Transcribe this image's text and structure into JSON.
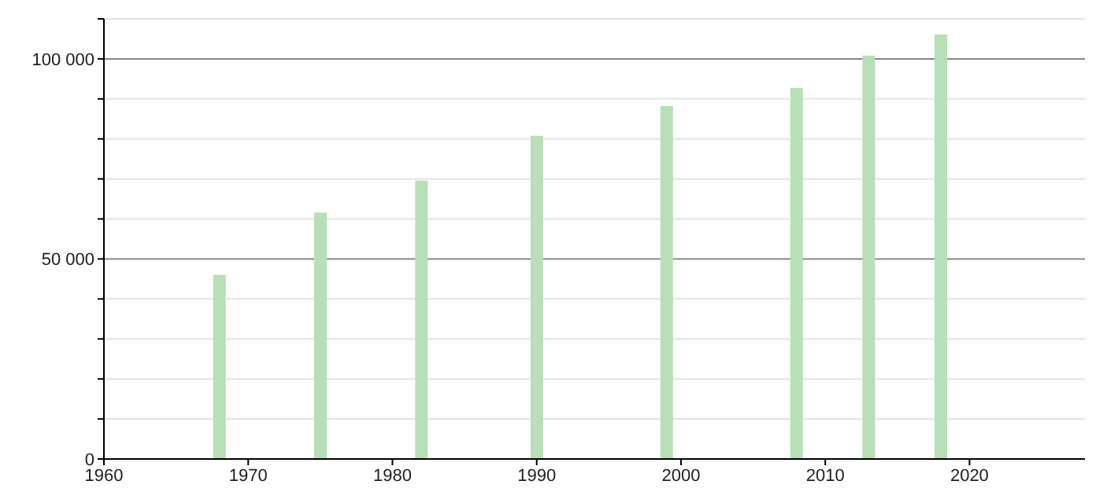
{
  "chart_data": {
    "type": "bar",
    "x": [
      1968,
      1975,
      1982,
      1990,
      1999,
      2008,
      2013,
      2018
    ],
    "values": [
      46000,
      61600,
      69600,
      80800,
      88200,
      92700,
      100800,
      106100
    ],
    "color": "#b8dfb8",
    "xlim": [
      1960,
      2028
    ],
    "xticks": [
      1960,
      1970,
      1980,
      1990,
      2000,
      2010,
      2020
    ],
    "ylim": [
      0,
      110000
    ],
    "yticks": [
      0,
      {
        "value": 10000,
        "label": null
      },
      {
        "value": 20000,
        "label": null
      },
      {
        "value": 30000,
        "label": null
      },
      {
        "value": 40000,
        "label": null
      },
      {
        "value": 50000,
        "label": "50 000"
      },
      {
        "value": 60000,
        "label": null
      },
      {
        "value": 70000,
        "label": null
      },
      {
        "value": 80000,
        "label": null
      },
      {
        "value": 90000,
        "label": null
      },
      {
        "value": 100000,
        "label": "100 000"
      },
      {
        "value": 110000,
        "label": null
      }
    ],
    "grid": "y"
  }
}
